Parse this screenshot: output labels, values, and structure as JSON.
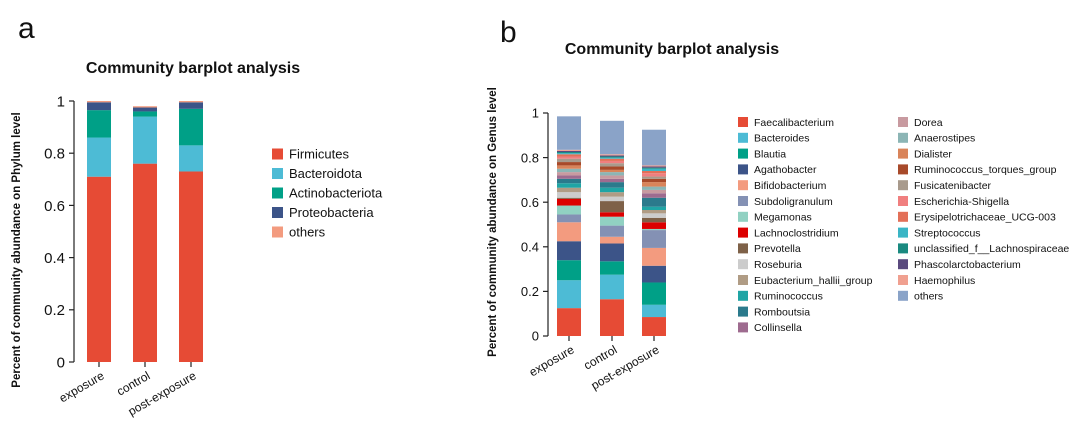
{
  "chart_data": [
    {
      "panel_label": "a",
      "type": "bar",
      "stacked": true,
      "title": "Community barplot analysis",
      "xlabel": "",
      "ylabel": "Percent of community abundance on Phylum level",
      "ylim": [
        0,
        1
      ],
      "yticks": [
        0,
        0.2,
        0.4,
        0.6,
        0.8,
        1
      ],
      "ytick_labels": [
        "0",
        "0.2",
        "0.4",
        "0.6",
        "0.8",
        "1"
      ],
      "categories": [
        "exposure",
        "control",
        "post-exposure"
      ],
      "series": [
        {
          "name": "Firmicutes",
          "color": "#e64b35",
          "values": [
            0.71,
            0.76,
            0.73
          ]
        },
        {
          "name": "Bacteroidota",
          "color": "#4dbbd5",
          "values": [
            0.15,
            0.18,
            0.1
          ]
        },
        {
          "name": "Actinobacteriota",
          "color": "#00a087",
          "values": [
            0.105,
            0.02,
            0.14
          ]
        },
        {
          "name": "Proteobacteria",
          "color": "#3c5488",
          "values": [
            0.03,
            0.015,
            0.025
          ]
        },
        {
          "name": "others",
          "color": "#f39b7f",
          "values": [
            0.005,
            0.005,
            0.005
          ]
        }
      ]
    },
    {
      "panel_label": "b",
      "type": "bar",
      "stacked": true,
      "title": "Community barplot analysis",
      "xlabel": "",
      "ylabel": "Percent of community abundance on Genus level",
      "ylim": [
        0,
        1
      ],
      "yticks": [
        0,
        0.2,
        0.4,
        0.6,
        0.8,
        1
      ],
      "ytick_labels": [
        "0",
        "0.2",
        "0.4",
        "0.6",
        "0.8",
        "1"
      ],
      "categories": [
        "exposure",
        "control",
        "post-exposure"
      ],
      "series": [
        {
          "name": "Faecalibacterium",
          "color": "#e64b35",
          "values": [
            0.125,
            0.165,
            0.085
          ]
        },
        {
          "name": "Bacteroides",
          "color": "#4dbbd5",
          "values": [
            0.125,
            0.11,
            0.055
          ]
        },
        {
          "name": "Blautia",
          "color": "#00a087",
          "values": [
            0.09,
            0.06,
            0.1
          ]
        },
        {
          "name": "Agathobacter",
          "color": "#3c5488",
          "values": [
            0.085,
            0.08,
            0.075
          ]
        },
        {
          "name": "Bifidobacterium",
          "color": "#f39b7f",
          "values": [
            0.085,
            0.03,
            0.08
          ]
        },
        {
          "name": "Subdoligranulum",
          "color": "#8491b4",
          "values": [
            0.035,
            0.05,
            0.08
          ]
        },
        {
          "name": "Megamonas",
          "color": "#91d1c2",
          "values": [
            0.04,
            0.04,
            0.005
          ]
        },
        {
          "name": "Lachnoclostridium",
          "color": "#dc0000",
          "values": [
            0.03,
            0.02,
            0.03
          ]
        },
        {
          "name": "Prevotella",
          "color": "#7e6148",
          "values": [
            0.005,
            0.05,
            0.02
          ]
        },
        {
          "name": "Roseburia",
          "color": "#cccccc",
          "values": [
            0.025,
            0.02,
            0.02
          ]
        },
        {
          "name": "Eubacterium_hallii_group",
          "color": "#b09c85",
          "values": [
            0.02,
            0.02,
            0.015
          ]
        },
        {
          "name": "Ruminococcus",
          "color": "#1fa5a5",
          "values": [
            0.02,
            0.02,
            0.015
          ]
        },
        {
          "name": "Romboutsia",
          "color": "#2b7a8c",
          "values": [
            0.02,
            0.025,
            0.04
          ]
        },
        {
          "name": "Collinsella",
          "color": "#9e6b8f",
          "values": [
            0.015,
            0.015,
            0.02
          ]
        },
        {
          "name": "Dorea",
          "color": "#c89aa0",
          "values": [
            0.015,
            0.015,
            0.015
          ]
        },
        {
          "name": "Anaerostipes",
          "color": "#8cb5b5",
          "values": [
            0.015,
            0.015,
            0.015
          ]
        },
        {
          "name": "Dialister",
          "color": "#d9845a",
          "values": [
            0.015,
            0.01,
            0.02
          ]
        },
        {
          "name": "Ruminococcus_torques_group",
          "color": "#a84a2a",
          "values": [
            0.015,
            0.015,
            0.015
          ]
        },
        {
          "name": "Fusicatenibacter",
          "color": "#a89a8c",
          "values": [
            0.015,
            0.015,
            0.01
          ]
        },
        {
          "name": "Escherichia-Shigella",
          "color": "#f07f7f",
          "values": [
            0.01,
            0.01,
            0.015
          ]
        },
        {
          "name": "Erysipelotrichaceae_UCG-003",
          "color": "#e37058",
          "values": [
            0.01,
            0.01,
            0.01
          ]
        },
        {
          "name": "Streptococcus",
          "color": "#3ab5c5",
          "values": [
            0.005,
            0.005,
            0.01
          ]
        },
        {
          "name": "unclassified_f__Lachnospiraceae",
          "color": "#1a8a80",
          "values": [
            0.005,
            0.005,
            0.005
          ]
        },
        {
          "name": "Phascolarctobacterium",
          "color": "#5a4a7e",
          "values": [
            0.005,
            0.005,
            0.005
          ]
        },
        {
          "name": "Haemophilus",
          "color": "#f0a090",
          "values": [
            0.005,
            0.005,
            0.005
          ]
        },
        {
          "name": "others",
          "color": "#8aa3c8",
          "values": [
            0.15,
            0.15,
            0.16
          ]
        }
      ]
    }
  ]
}
